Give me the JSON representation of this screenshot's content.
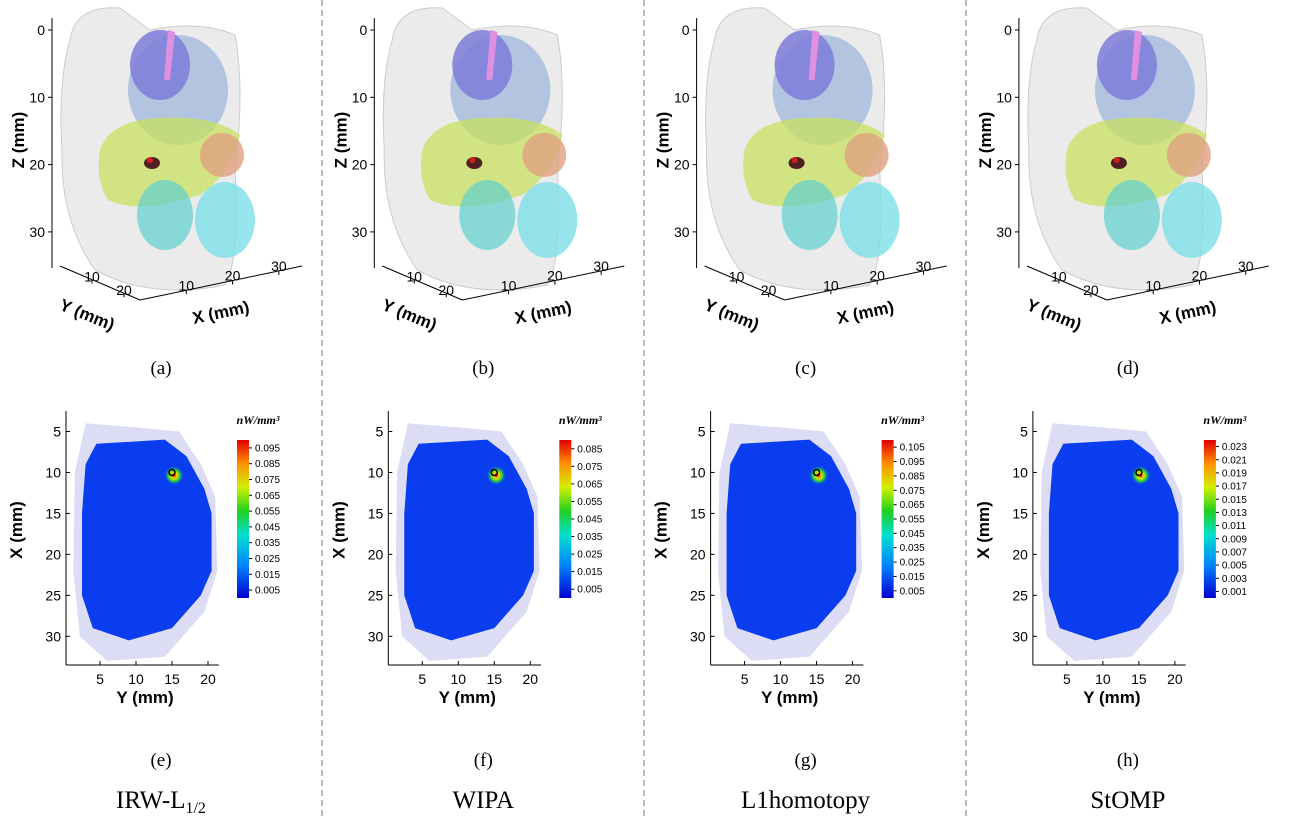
{
  "panels": [
    {
      "label_3d": "(a)",
      "label_map": "(e)",
      "method": "IRW-L",
      "method_sub": "1/2",
      "colorbar_ticks": [
        0.095,
        0.085,
        0.075,
        0.065,
        0.055,
        0.045,
        0.035,
        0.025,
        0.015,
        0.005
      ],
      "colorbar_range": [
        0,
        0.1
      ]
    },
    {
      "label_3d": "(b)",
      "label_map": "(f)",
      "method": "WIPA",
      "colorbar_ticks": [
        0.085,
        0.075,
        0.065,
        0.055,
        0.045,
        0.035,
        0.025,
        0.015,
        0.005
      ],
      "colorbar_range": [
        0,
        0.09
      ]
    },
    {
      "label_3d": "(c)",
      "label_map": "(g)",
      "method": "L1homotopy",
      "colorbar_ticks": [
        0.105,
        0.095,
        0.085,
        0.075,
        0.065,
        0.055,
        0.045,
        0.035,
        0.025,
        0.015,
        0.005
      ],
      "colorbar_range": [
        0,
        0.11
      ]
    },
    {
      "label_3d": "(d)",
      "label_map": "(h)",
      "method": "StOMP",
      "colorbar_ticks": [
        0.023,
        0.021,
        0.019,
        0.017,
        0.015,
        0.013,
        0.011,
        0.009,
        0.007,
        0.005,
        0.003,
        0.001
      ],
      "colorbar_range": [
        0,
        0.024
      ]
    }
  ],
  "volume_axes": {
    "z_label": "Z (mm)",
    "y_label": "Y (mm)",
    "x_label": "X (mm)",
    "z_ticks": [
      0,
      10,
      20,
      30
    ],
    "z_range": [
      0,
      35
    ],
    "y_ticks": [
      10,
      20
    ],
    "y_range": [
      0,
      25
    ],
    "x_ticks": [
      10,
      20,
      30
    ],
    "x_range": [
      0,
      35
    ]
  },
  "map_axes": {
    "x_label": "X (mm)",
    "y_label": "Y (mm)",
    "x_ticks": [
      5,
      10,
      15,
      20,
      25,
      30
    ],
    "x_range": [
      2.5,
      33.5
    ],
    "y_ticks": [
      5,
      10,
      15,
      20
    ],
    "y_range": [
      0.3,
      21.5
    ]
  },
  "colorbar_unit": "nW/mm³",
  "source": {
    "y": 15,
    "x": 10
  }
}
